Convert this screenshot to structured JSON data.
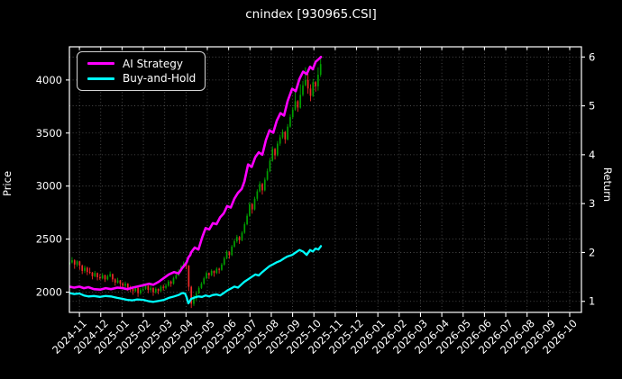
{
  "chart_data": {
    "type": "candlestick",
    "title": "cnindex [930965.CSI]",
    "grid": true,
    "background": "#000000",
    "text_color": "#ffffff",
    "legend": {
      "position": "upper-left",
      "items": [
        {
          "label": "AI Strategy",
          "color": "#ff00ff"
        },
        {
          "label": "Buy-and-Hold",
          "color": "#00ffff"
        }
      ]
    },
    "x_axis": {
      "tick_labels": [
        "2024-11",
        "2024-12",
        "2025-01",
        "2025-02",
        "2025-03",
        "2025-04",
        "2025-05",
        "2025-06",
        "2025-07",
        "2025-08",
        "2025-09",
        "2025-10",
        "2025-11",
        "2025-12",
        "2026-01",
        "2026-02",
        "2026-03",
        "2026-04",
        "2026-05",
        "2026-06",
        "2026-07",
        "2026-08",
        "2026-09",
        "2026-10"
      ],
      "rotation_deg": -45,
      "range_months": [
        -0.47,
        23.55
      ],
      "data_span": [
        "2024-11",
        "2025-10"
      ]
    },
    "left_axis": {
      "label": "Price",
      "ticks": [
        2000,
        2500,
        3000,
        3500,
        4000
      ],
      "range": [
        1809,
        4313
      ]
    },
    "right_axis": {
      "label": "Return",
      "ticks": [
        1,
        2,
        3,
        4,
        5,
        6
      ],
      "range": [
        0.774,
        6.208
      ]
    },
    "candles": {
      "up_color": "#00a000",
      "down_color": "#ef2929",
      "x_start": -0.465,
      "x_step": 0.119,
      "ohlc": [
        [
          2260,
          2310,
          2230,
          2280
        ],
        [
          2280,
          2330,
          2270,
          2300
        ],
        [
          2300,
          2310,
          2220,
          2260
        ],
        [
          2260,
          2300,
          2240,
          2290
        ],
        [
          2290,
          2295,
          2210,
          2250
        ],
        [
          2250,
          2260,
          2170,
          2200
        ],
        [
          2200,
          2250,
          2180,
          2230
        ],
        [
          2230,
          2240,
          2160,
          2190
        ],
        [
          2190,
          2230,
          2170,
          2185
        ],
        [
          2185,
          2190,
          2120,
          2150
        ],
        [
          2150,
          2200,
          2140,
          2180
        ],
        [
          2180,
          2185,
          2110,
          2140
        ],
        [
          2140,
          2170,
          2115,
          2130
        ],
        [
          2130,
          2180,
          2120,
          2160
        ],
        [
          2160,
          2165,
          2095,
          2120
        ],
        [
          2120,
          2165,
          2110,
          2150
        ],
        [
          2150,
          2195,
          2140,
          2170
        ],
        [
          2170,
          2175,
          2095,
          2120
        ],
        [
          2120,
          2130,
          2060,
          2090
        ],
        [
          2090,
          2135,
          2080,
          2110
        ],
        [
          2110,
          2115,
          2050,
          2080
        ],
        [
          2080,
          2095,
          2030,
          2060
        ],
        [
          2060,
          2100,
          2045,
          2080
        ],
        [
          2080,
          2085,
          2010,
          2040
        ],
        [
          2040,
          2060,
          2000,
          2030
        ],
        [
          2030,
          2040,
          1975,
          2010
        ],
        [
          2010,
          2060,
          2000,
          2040
        ],
        [
          2040,
          2045,
          1955,
          1990
        ],
        [
          1990,
          2040,
          1975,
          2020
        ],
        [
          2020,
          2055,
          2005,
          2030
        ],
        [
          2030,
          2080,
          2020,
          2060
        ],
        [
          2060,
          2065,
          1990,
          2020
        ],
        [
          2020,
          2060,
          2005,
          2040
        ],
        [
          2040,
          2045,
          1965,
          2000
        ],
        [
          2000,
          2045,
          1985,
          2030
        ],
        [
          2030,
          2035,
          1980,
          2010
        ],
        [
          2010,
          2065,
          2000,
          2050
        ],
        [
          2050,
          2070,
          2015,
          2040
        ],
        [
          2040,
          2080,
          2025,
          2060
        ],
        [
          2060,
          2115,
          2050,
          2100
        ],
        [
          2100,
          2110,
          2050,
          2080
        ],
        [
          2080,
          2145,
          2070,
          2130
        ],
        [
          2130,
          2180,
          2120,
          2160
        ],
        [
          2160,
          2215,
          2150,
          2200
        ],
        [
          2200,
          2255,
          2190,
          2240
        ],
        [
          2240,
          2290,
          2230,
          2270
        ],
        [
          2270,
          2280,
          2215,
          2250
        ],
        [
          2250,
          2255,
          2010,
          2050
        ],
        [
          2050,
          2060,
          1850,
          1890
        ],
        [
          1890,
          1970,
          1870,
          1940
        ],
        [
          1940,
          2010,
          1920,
          1990
        ],
        [
          1990,
          2055,
          1980,
          2040
        ],
        [
          2040,
          2095,
          2030,
          2080
        ],
        [
          2080,
          2145,
          2070,
          2130
        ],
        [
          2130,
          2195,
          2120,
          2180
        ],
        [
          2180,
          2185,
          2125,
          2160
        ],
        [
          2160,
          2215,
          2150,
          2200
        ],
        [
          2200,
          2205,
          2145,
          2180
        ],
        [
          2180,
          2235,
          2170,
          2220
        ],
        [
          2220,
          2230,
          2175,
          2210
        ],
        [
          2210,
          2275,
          2200,
          2260
        ],
        [
          2260,
          2335,
          2250,
          2320
        ],
        [
          2320,
          2395,
          2310,
          2380
        ],
        [
          2380,
          2385,
          2315,
          2350
        ],
        [
          2350,
          2445,
          2340,
          2430
        ],
        [
          2430,
          2500,
          2420,
          2480
        ],
        [
          2480,
          2540,
          2465,
          2520
        ],
        [
          2520,
          2530,
          2455,
          2490
        ],
        [
          2490,
          2575,
          2480,
          2560
        ],
        [
          2560,
          2660,
          2550,
          2640
        ],
        [
          2640,
          2740,
          2630,
          2720
        ],
        [
          2720,
          2850,
          2710,
          2830
        ],
        [
          2830,
          2840,
          2740,
          2780
        ],
        [
          2780,
          2900,
          2770,
          2880
        ],
        [
          2880,
          2970,
          2860,
          2950
        ],
        [
          2950,
          3045,
          2940,
          3020
        ],
        [
          3020,
          3030,
          2920,
          2960
        ],
        [
          2960,
          3080,
          2950,
          3060
        ],
        [
          3060,
          3165,
          3050,
          3140
        ],
        [
          3140,
          3265,
          3130,
          3240
        ],
        [
          3240,
          3375,
          3230,
          3350
        ],
        [
          3350,
          3360,
          3250,
          3290
        ],
        [
          3290,
          3425,
          3280,
          3400
        ],
        [
          3400,
          3485,
          3380,
          3460
        ],
        [
          3460,
          3535,
          3445,
          3510
        ],
        [
          3510,
          3520,
          3400,
          3440
        ],
        [
          3440,
          3585,
          3430,
          3560
        ],
        [
          3560,
          3675,
          3550,
          3650
        ],
        [
          3650,
          3745,
          3635,
          3720
        ],
        [
          3720,
          3900,
          3710,
          3800
        ],
        [
          3800,
          3810,
          3700,
          3740
        ],
        [
          3740,
          3960,
          3730,
          3860
        ],
        [
          3860,
          3990,
          3845,
          3950
        ],
        [
          3950,
          4120,
          3940,
          4000
        ],
        [
          4000,
          4060,
          3870,
          3920
        ],
        [
          3920,
          3960,
          3800,
          3850
        ],
        [
          3850,
          4010,
          3840,
          3980
        ],
        [
          3980,
          3990,
          3890,
          3940
        ],
        [
          3940,
          4120,
          3900,
          4050
        ],
        [
          4050,
          4220,
          4030,
          4150
        ]
      ]
    },
    "series_x_months": [
      -0.47,
      -0.25,
      0.0,
      0.21,
      0.42,
      0.68,
      0.97,
      1.23,
      1.48,
      1.78,
      2.03,
      2.24,
      2.49,
      2.71,
      3.0,
      3.26,
      3.47,
      3.72,
      3.97,
      4.19,
      4.44,
      4.65,
      4.82,
      4.95,
      5.03,
      5.07,
      5.11,
      5.2,
      5.24,
      5.41,
      5.58,
      5.75,
      5.92,
      6.09,
      6.26,
      6.43,
      6.6,
      6.77,
      6.93,
      7.1,
      7.27,
      7.44,
      7.61,
      7.74,
      7.91,
      8.08,
      8.25,
      8.41,
      8.58,
      8.75,
      8.92,
      9.09,
      9.26,
      9.43,
      9.6,
      9.77,
      9.98,
      10.15,
      10.32,
      10.49,
      10.66,
      10.82,
      10.95,
      11.08,
      11.21,
      11.33
    ],
    "series": [
      {
        "name": "AI Strategy",
        "axis": "return",
        "color": "#ff00ff",
        "width": 2.6,
        "y": [
          1.3,
          1.28,
          1.3,
          1.27,
          1.29,
          1.25,
          1.24,
          1.27,
          1.25,
          1.28,
          1.27,
          1.25,
          1.28,
          1.3,
          1.33,
          1.36,
          1.34,
          1.4,
          1.48,
          1.55,
          1.6,
          1.57,
          1.68,
          1.75,
          1.8,
          1.85,
          1.9,
          1.95,
          2.0,
          2.1,
          2.06,
          2.3,
          2.5,
          2.47,
          2.6,
          2.58,
          2.72,
          2.8,
          2.95,
          2.92,
          3.1,
          3.22,
          3.3,
          3.45,
          3.8,
          3.75,
          3.95,
          4.05,
          4.0,
          4.3,
          4.5,
          4.45,
          4.7,
          4.85,
          4.8,
          5.1,
          5.35,
          5.3,
          5.55,
          5.7,
          5.65,
          5.8,
          5.75,
          5.9,
          5.95,
          6.0
        ]
      },
      {
        "name": "Buy-and-Hold",
        "axis": "return",
        "color": "#00ffff",
        "width": 2.3,
        "y": [
          1.17,
          1.15,
          1.16,
          1.12,
          1.1,
          1.11,
          1.09,
          1.11,
          1.1,
          1.07,
          1.05,
          1.03,
          1.02,
          1.04,
          1.03,
          1.0,
          0.99,
          1.01,
          1.03,
          1.07,
          1.1,
          1.13,
          1.17,
          1.16,
          1.08,
          1.02,
          0.96,
          1.02,
          1.05,
          1.08,
          1.1,
          1.09,
          1.12,
          1.1,
          1.13,
          1.14,
          1.12,
          1.17,
          1.22,
          1.26,
          1.3,
          1.28,
          1.35,
          1.4,
          1.45,
          1.5,
          1.55,
          1.53,
          1.6,
          1.66,
          1.72,
          1.76,
          1.8,
          1.83,
          1.88,
          1.92,
          1.95,
          2.0,
          2.05,
          2.02,
          1.95,
          2.05,
          2.02,
          2.08,
          2.06,
          2.13
        ]
      }
    ]
  }
}
